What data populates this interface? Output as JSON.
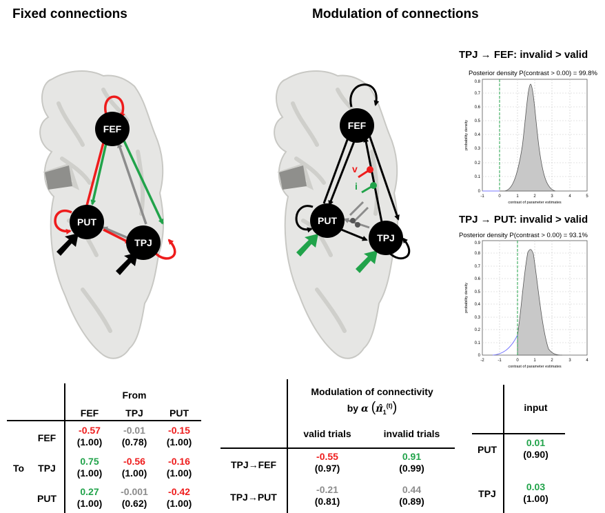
{
  "titles": {
    "fixed": "Fixed connections",
    "modulation": "Modulation of connections"
  },
  "nodes": {
    "fef": "FEF",
    "put": "PUT",
    "tpj": "TPJ"
  },
  "mod_labels": {
    "v": "v",
    "i": "i"
  },
  "plots": [
    {
      "title": "TPJ → FEF: invalid > valid",
      "subtitle": "Posterior density P(contrast > 0.00) = 99.8%",
      "xlabel": "contrast of parameter estimates",
      "ylabel": "probability density",
      "xticks": [
        "-1",
        "0",
        "1",
        "2",
        "3",
        "4",
        "5"
      ],
      "yticks": [
        "0",
        "0.1",
        "0.2",
        "0.3",
        "0.4",
        "0.5",
        "0.6",
        "0.7",
        "0.8"
      ]
    },
    {
      "title": "TPJ → PUT: invalid > valid",
      "subtitle": "Posterior density P(contrast > 0.00) = 93.1%",
      "xlabel": "contrast of parameter estimates",
      "ylabel": "probability density",
      "xticks": [
        "-2",
        "-1",
        "0",
        "1",
        "2",
        "3",
        "4"
      ],
      "yticks": [
        "0",
        "0.1",
        "0.2",
        "0.3",
        "0.4",
        "0.5",
        "0.6",
        "0.7",
        "0.8",
        "0.9"
      ]
    }
  ],
  "fixed_table": {
    "from_label": "From",
    "to_label": "To",
    "columns": [
      "FEF",
      "TPJ",
      "PUT"
    ],
    "rows": [
      {
        "label": "FEF",
        "cells": [
          {
            "v": "-0.57",
            "p": "(1.00)",
            "c": "red"
          },
          {
            "v": "-0.01",
            "p": "(0.78)",
            "c": "gry"
          },
          {
            "v": "-0.15",
            "p": "(1.00)",
            "c": "red"
          }
        ]
      },
      {
        "label": "TPJ",
        "cells": [
          {
            "v": "0.75",
            "p": "(1.00)",
            "c": "grn"
          },
          {
            "v": "-0.56",
            "p": "(1.00)",
            "c": "red"
          },
          {
            "v": "-0.16",
            "p": "(1.00)",
            "c": "red"
          }
        ]
      },
      {
        "label": "PUT",
        "cells": [
          {
            "v": "0.27",
            "p": "(1.00)",
            "c": "grn"
          },
          {
            "v": "-0.001",
            "p": "(0.62)",
            "c": "gry"
          },
          {
            "v": "-0.42",
            "p": "(1.00)",
            "c": "red"
          }
        ]
      }
    ]
  },
  "mod_table": {
    "title_line1": "Modulation of connectivity",
    "title_line2": "by",
    "alpha": "α",
    "pi": "π̂",
    "sub": "1",
    "sup": "(t)",
    "columns": [
      "valid trials",
      "invalid trials"
    ],
    "rows": [
      {
        "label": "TPJ→FEF",
        "cells": [
          {
            "v": "-0.55",
            "p": "(0.97)",
            "c": "red"
          },
          {
            "v": "0.91",
            "p": "(0.99)",
            "c": "grn"
          }
        ]
      },
      {
        "label": "TPJ→PUT",
        "cells": [
          {
            "v": "-0.21",
            "p": "(0.81)",
            "c": "gry"
          },
          {
            "v": "0.44",
            "p": "(0.89)",
            "c": "gry"
          }
        ]
      }
    ]
  },
  "input_table": {
    "header": "input",
    "rows": [
      {
        "label": "PUT",
        "v": "0.01",
        "p": "(0.90)",
        "c": "grn"
      },
      {
        "label": "TPJ",
        "v": "0.03",
        "p": "(1.00)",
        "c": "grn"
      }
    ]
  }
}
